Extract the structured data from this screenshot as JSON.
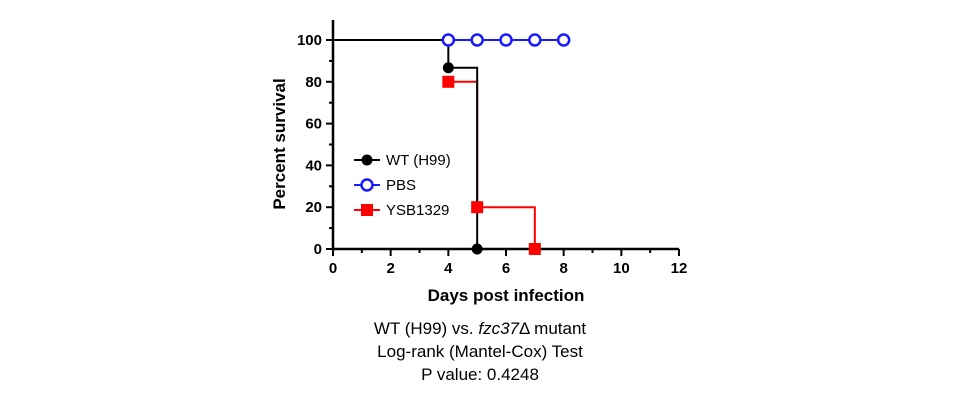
{
  "chart_data": {
    "type": "line",
    "subtype": "kaplan-meier",
    "xlabel": "Days post infection",
    "ylabel": "Percent survival",
    "xlim": [
      0,
      12
    ],
    "ylim": [
      0,
      100
    ],
    "xticks": [
      0,
      2,
      4,
      6,
      8,
      10,
      12
    ],
    "yticks": [
      0,
      20,
      40,
      60,
      80,
      100
    ],
    "grid": false,
    "legend_position": "middle-left",
    "series": [
      {
        "name": "WT (H99)",
        "color": "#000000",
        "marker": "filled-circle",
        "steps": [
          [
            0,
            100
          ],
          [
            4,
            100
          ],
          [
            4,
            86.7
          ],
          [
            5,
            86.7
          ],
          [
            5,
            0
          ]
        ],
        "points": [
          [
            4,
            86.7
          ],
          [
            5,
            0
          ]
        ]
      },
      {
        "name": "PBS",
        "color": "#1a1aff",
        "marker": "open-circle",
        "steps": [
          [
            4,
            100
          ],
          [
            8,
            100
          ]
        ],
        "points": [
          [
            4,
            100
          ],
          [
            5,
            100
          ],
          [
            6,
            100
          ],
          [
            7,
            100
          ],
          [
            8,
            100
          ]
        ]
      },
      {
        "name": "YSB1329",
        "color": "#ff0000",
        "marker": "filled-square",
        "steps": [
          [
            4,
            80
          ],
          [
            5,
            80
          ],
          [
            5,
            20
          ],
          [
            7,
            20
          ],
          [
            7,
            0
          ]
        ],
        "points": [
          [
            4,
            80
          ],
          [
            5,
            20
          ],
          [
            7,
            0
          ]
        ]
      }
    ]
  },
  "caption": {
    "line1_prefix": "WT (H99) vs. ",
    "line1_gene": "fzc37",
    "line1_suffix": "Δ mutant",
    "line2": "Log-rank (Mantel-Cox) Test",
    "line3": "P value: 0.4248"
  }
}
